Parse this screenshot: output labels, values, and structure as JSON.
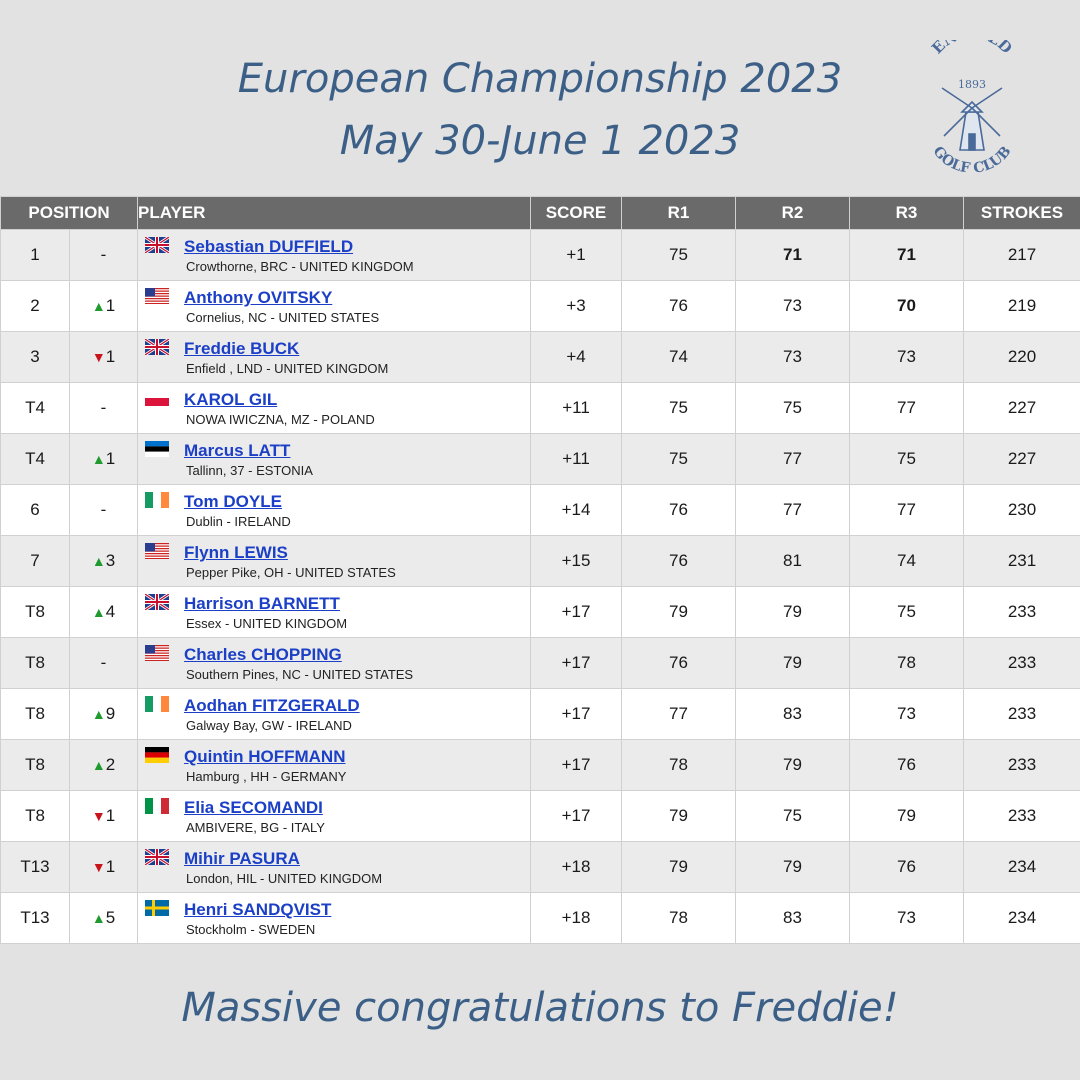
{
  "title": {
    "line1": "European Championship 2023",
    "line2": "May 30-June 1 2023"
  },
  "logo": {
    "top": "ENFIELD",
    "year": "1893",
    "bottom": "GOLF CLUB",
    "icon": "windmill-icon"
  },
  "columns": [
    "POSITION",
    "PLAYER",
    "SCORE",
    "R1",
    "R2",
    "R3",
    "STROKES"
  ],
  "colors": {
    "header_bg": "#6a6a6a",
    "title": "#3b5f86",
    "link": "#1b3fc6",
    "up": "#1f9a2e",
    "down": "#c9141b",
    "best_round": "#8a1414"
  },
  "rows": [
    {
      "pos": "1",
      "dir": "none",
      "move": "-",
      "flag": "uk",
      "name": "Sebastian DUFFIELD",
      "loc": "Crowthorne, BRC - UNITED KINGDOM",
      "score": "+1",
      "r1": "75",
      "r2": "71",
      "r3": "71",
      "strokes": "217",
      "best": [
        "r2",
        "r3"
      ]
    },
    {
      "pos": "2",
      "dir": "up",
      "move": "1",
      "flag": "us",
      "name": "Anthony OVITSKY",
      "loc": "Cornelius, NC - UNITED STATES",
      "score": "+3",
      "r1": "76",
      "r2": "73",
      "r3": "70",
      "strokes": "219",
      "best": [
        "r3"
      ]
    },
    {
      "pos": "3",
      "dir": "down",
      "move": "1",
      "flag": "uk",
      "name": "Freddie BUCK",
      "loc": "Enfield , LND - UNITED KINGDOM",
      "score": "+4",
      "r1": "74",
      "r2": "73",
      "r3": "73",
      "strokes": "220",
      "best": []
    },
    {
      "pos": "T4",
      "dir": "none",
      "move": "-",
      "flag": "pl",
      "name": "KAROL GIL",
      "loc": "NOWA IWICZNA, MZ - POLAND",
      "score": "+11",
      "r1": "75",
      "r2": "75",
      "r3": "77",
      "strokes": "227",
      "best": []
    },
    {
      "pos": "T4",
      "dir": "up",
      "move": "1",
      "flag": "ee",
      "name": "Marcus LATT",
      "loc": "Tallinn, 37 - ESTONIA",
      "score": "+11",
      "r1": "75",
      "r2": "77",
      "r3": "75",
      "strokes": "227",
      "best": []
    },
    {
      "pos": "6",
      "dir": "none",
      "move": "-",
      "flag": "ie",
      "name": "Tom DOYLE",
      "loc": "Dublin - IRELAND",
      "score": "+14",
      "r1": "76",
      "r2": "77",
      "r3": "77",
      "strokes": "230",
      "best": []
    },
    {
      "pos": "7",
      "dir": "up",
      "move": "3",
      "flag": "us",
      "name": "Flynn LEWIS",
      "loc": "Pepper Pike, OH - UNITED STATES",
      "score": "+15",
      "r1": "76",
      "r2": "81",
      "r3": "74",
      "strokes": "231",
      "best": []
    },
    {
      "pos": "T8",
      "dir": "up",
      "move": "4",
      "flag": "uk",
      "name": "Harrison BARNETT",
      "loc": "Essex - UNITED KINGDOM",
      "score": "+17",
      "r1": "79",
      "r2": "79",
      "r3": "75",
      "strokes": "233",
      "best": []
    },
    {
      "pos": "T8",
      "dir": "none",
      "move": "-",
      "flag": "us",
      "name": "Charles CHOPPING",
      "loc": "Southern Pines, NC - UNITED STATES",
      "score": "+17",
      "r1": "76",
      "r2": "79",
      "r3": "78",
      "strokes": "233",
      "best": []
    },
    {
      "pos": "T8",
      "dir": "up",
      "move": "9",
      "flag": "ie",
      "name": "Aodhan FITZGERALD",
      "loc": "Galway Bay, GW - IRELAND",
      "score": "+17",
      "r1": "77",
      "r2": "83",
      "r3": "73",
      "strokes": "233",
      "best": []
    },
    {
      "pos": "T8",
      "dir": "up",
      "move": "2",
      "flag": "de",
      "name": "Quintin HOFFMANN",
      "loc": "Hamburg , HH - GERMANY",
      "score": "+17",
      "r1": "78",
      "r2": "79",
      "r3": "76",
      "strokes": "233",
      "best": []
    },
    {
      "pos": "T8",
      "dir": "down",
      "move": "1",
      "flag": "it",
      "name": "Elia SECOMANDI",
      "loc": "AMBIVERE, BG - ITALY",
      "score": "+17",
      "r1": "79",
      "r2": "75",
      "r3": "79",
      "strokes": "233",
      "best": []
    },
    {
      "pos": "T13",
      "dir": "down",
      "move": "1",
      "flag": "uk",
      "name": "Mihir PASURA",
      "loc": "London, HIL - UNITED KINGDOM",
      "score": "+18",
      "r1": "79",
      "r2": "79",
      "r3": "76",
      "strokes": "234",
      "best": []
    },
    {
      "pos": "T13",
      "dir": "up",
      "move": "5",
      "flag": "se",
      "name": "Henri SANDQVIST",
      "loc": "Stockholm - SWEDEN",
      "score": "+18",
      "r1": "78",
      "r2": "83",
      "r3": "73",
      "strokes": "234",
      "best": []
    }
  ],
  "footer": "Massive congratulations to Freddie!"
}
